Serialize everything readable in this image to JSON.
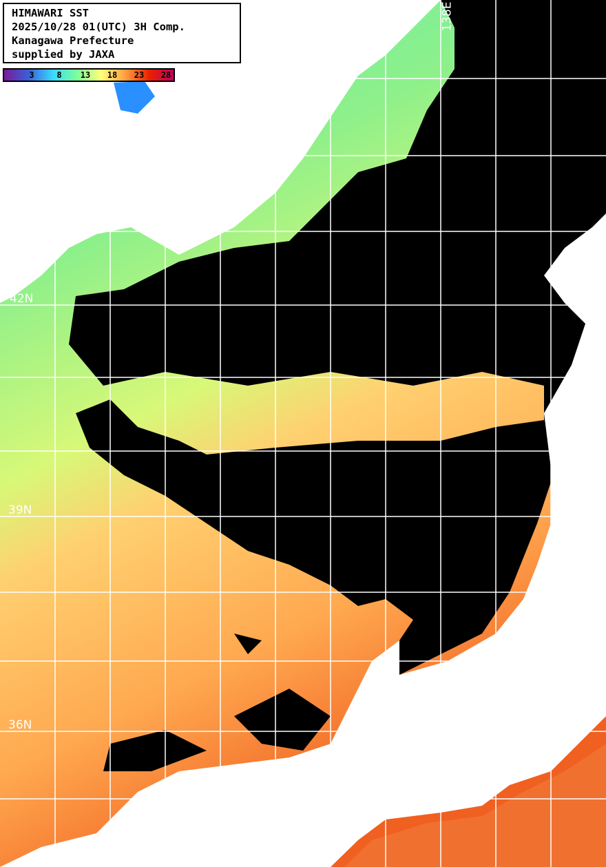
{
  "header": {
    "title": "HIMAWARI SST",
    "datetime": "2025/10/28 01(UTC) 3H Comp.",
    "provider": "Kanagawa Prefecture",
    "credit": "supplied by JAXA"
  },
  "colorbar": {
    "ticks": [
      "3",
      "8",
      "13",
      "18",
      "23",
      "28"
    ],
    "colors": [
      "#7a1a9a",
      "#3a5fd8",
      "#3ad8ff",
      "#7aff9a",
      "#ffff7a",
      "#ffa040",
      "#e82000",
      "#c00060"
    ]
  },
  "grid_labels": {
    "lat": [
      "42N",
      "39N",
      "36N"
    ],
    "lon": [
      "138E"
    ]
  },
  "map_colors": {
    "land": "#ffffff",
    "cloud": "#000000",
    "grid": "#ffffff"
  }
}
